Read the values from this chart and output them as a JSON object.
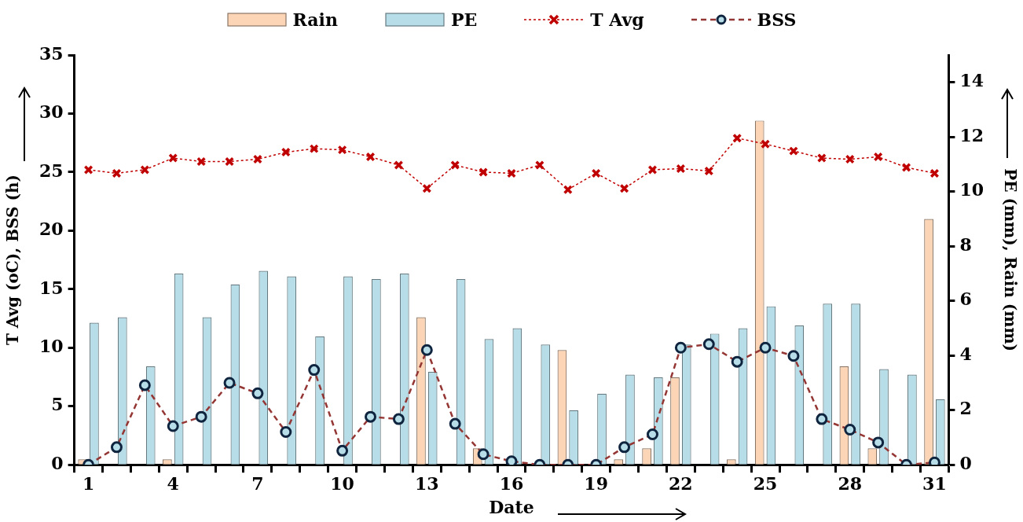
{
  "chart_data": {
    "type": "bar",
    "categories": [
      "1",
      null,
      null,
      "4",
      null,
      null,
      "7",
      null,
      null,
      "10",
      null,
      null,
      "13",
      null,
      null,
      "16",
      null,
      null,
      "19",
      null,
      null,
      "22",
      null,
      null,
      "25",
      null,
      null,
      "28",
      null,
      null,
      "31"
    ],
    "series": [
      {
        "name": "Rain",
        "axis": "y2",
        "color": "#fbd5b5",
        "values": [
          0.2,
          0,
          0,
          0.2,
          0,
          0,
          0,
          0,
          0,
          0,
          0,
          0,
          5.4,
          0,
          0.6,
          0,
          0,
          4.2,
          0,
          0.2,
          0.6,
          3.2,
          0,
          0.2,
          12.6,
          0,
          0,
          3.6,
          0.6,
          0,
          9.0
        ]
      },
      {
        "name": "PE",
        "axis": "y2",
        "color": "#b7dee8",
        "values": [
          5.2,
          5.4,
          3.6,
          7.0,
          5.4,
          6.6,
          7.1,
          6.9,
          4.7,
          6.9,
          6.8,
          7.0,
          3.4,
          6.8,
          4.6,
          5.0,
          4.4,
          2.0,
          2.6,
          3.3,
          3.2,
          4.4,
          4.8,
          5.0,
          5.8,
          5.1,
          5.9,
          5.9,
          3.5,
          3.3,
          2.4
        ]
      },
      {
        "name": "T Avg",
        "type": "line",
        "axis": "y",
        "color": "#c00000",
        "marker": "cross",
        "line_style": "dotted",
        "values": [
          25.2,
          24.9,
          25.2,
          26.2,
          25.9,
          25.9,
          26.1,
          26.7,
          27.0,
          26.9,
          26.3,
          25.6,
          23.6,
          25.6,
          25.0,
          24.9,
          25.6,
          23.5,
          24.9,
          23.6,
          25.2,
          25.3,
          25.1,
          27.9,
          27.4,
          26.8,
          26.2,
          26.1,
          26.3,
          25.4,
          24.9
        ]
      },
      {
        "name": "BSS",
        "type": "line",
        "axis": "y",
        "color": "#943634",
        "marker": "circle",
        "line_style": "dashed",
        "values": [
          0,
          1.5,
          6.8,
          3.3,
          4.1,
          7.0,
          6.1,
          2.8,
          8.1,
          1.2,
          4.1,
          3.9,
          9.8,
          3.5,
          0.9,
          0.3,
          0,
          0,
          0,
          1.5,
          2.6,
          10.0,
          10.3,
          8.8,
          10.0,
          9.3,
          3.9,
          3.0,
          1.9,
          0,
          0.2
        ]
      }
    ],
    "xlabel": "Date",
    "ylabel": "T Avg (oC), BSS (h)",
    "y2label": "PE (mm), Rain (mm)",
    "ylim": [
      0,
      35
    ],
    "yticks": [
      0,
      5,
      10,
      15,
      20,
      25,
      30,
      35
    ],
    "y2lim": [
      0,
      15
    ],
    "y2ticks": [
      0,
      2,
      4,
      6,
      8,
      10,
      12,
      14
    ],
    "grid": false,
    "legend": "top"
  }
}
